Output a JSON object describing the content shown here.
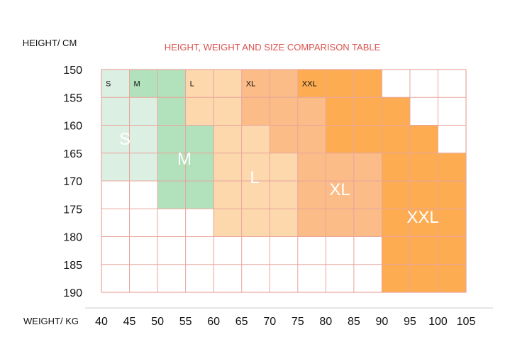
{
  "chart_data": {
    "type": "heatmap",
    "title": "HEIGHT, WEIGHT AND SIZE COMPARISON TABLE",
    "ylabel": "HEIGHT/ CM",
    "xlabel": "WEIGHT/ KG",
    "x_ticks": [
      40,
      45,
      50,
      55,
      60,
      65,
      70,
      75,
      80,
      85,
      90,
      95,
      100,
      105
    ],
    "y_ticks": [
      150,
      155,
      160,
      165,
      170,
      175,
      180,
      185,
      190
    ],
    "xlim": [
      40,
      105
    ],
    "ylim": [
      150,
      190
    ],
    "grid": true,
    "sizes": [
      {
        "name": "S",
        "header": "S",
        "weight_min": 40,
        "weight_max": 50,
        "height_min": 155,
        "height_max": 170,
        "color": "#dcefe3",
        "header_color": "#dcefe3"
      },
      {
        "name": "M",
        "header": "M",
        "weight_min": 50,
        "weight_max": 60,
        "height_min": 160,
        "height_max": 175,
        "color": "#b2e2bb",
        "header_color": "#b2e2bb"
      },
      {
        "name": "L",
        "header": "L",
        "weight_min": 55,
        "weight_max": 80,
        "height_min": 155,
        "height_max": 180,
        "color": "#fdd8ad",
        "header_color": "#fdd8ad"
      },
      {
        "name": "XL",
        "header": "XL",
        "weight_min": 65,
        "weight_max": 90,
        "height_min": 155,
        "height_max": 180,
        "color": "#fbbc87",
        "header_color": "#fbbc87"
      },
      {
        "name": "XXL",
        "header": "XXL",
        "weight_min": 75,
        "weight_max": 105,
        "height_min": 150,
        "height_max": 190,
        "color": "#fdac52",
        "header_color": "#fdac52"
      }
    ],
    "header_bands": [
      {
        "size": "S",
        "weight_min": 40,
        "weight_max": 45
      },
      {
        "size": "M",
        "weight_min": 45,
        "weight_max": 55
      },
      {
        "size": "L",
        "weight_min": 55,
        "weight_max": 65
      },
      {
        "size": "XL",
        "weight_min": 65,
        "weight_max": 75
      },
      {
        "size": "XXL",
        "weight_min": 75,
        "weight_max": 90
      }
    ],
    "size_regions": [
      {
        "size": "S",
        "rects": [
          [
            40,
            50,
            155,
            170
          ]
        ]
      },
      {
        "size": "M",
        "rects": [
          [
            50,
            55,
            155,
            175
          ],
          [
            55,
            60,
            160,
            175
          ]
        ]
      },
      {
        "size": "L",
        "rects": [
          [
            55,
            65,
            155,
            160
          ],
          [
            60,
            65,
            160,
            180
          ],
          [
            65,
            70,
            160,
            180
          ],
          [
            70,
            75,
            165,
            180
          ]
        ]
      },
      {
        "size": "XL",
        "rects": [
          [
            65,
            70,
            155,
            160
          ],
          [
            70,
            80,
            155,
            165
          ],
          [
            75,
            80,
            165,
            180
          ],
          [
            80,
            85,
            160,
            180
          ],
          [
            85,
            90,
            165,
            180
          ]
        ]
      },
      {
        "size": "XXL",
        "rects": [
          [
            80,
            90,
            155,
            165
          ],
          [
            85,
            90,
            160,
            165
          ],
          [
            90,
            95,
            155,
            190
          ],
          [
            95,
            100,
            160,
            190
          ],
          [
            100,
            105,
            165,
            190
          ]
        ]
      }
    ],
    "colors": {
      "grid": "#e8a59c",
      "title": "#d9534f",
      "axis_line": "#cccccc"
    }
  }
}
